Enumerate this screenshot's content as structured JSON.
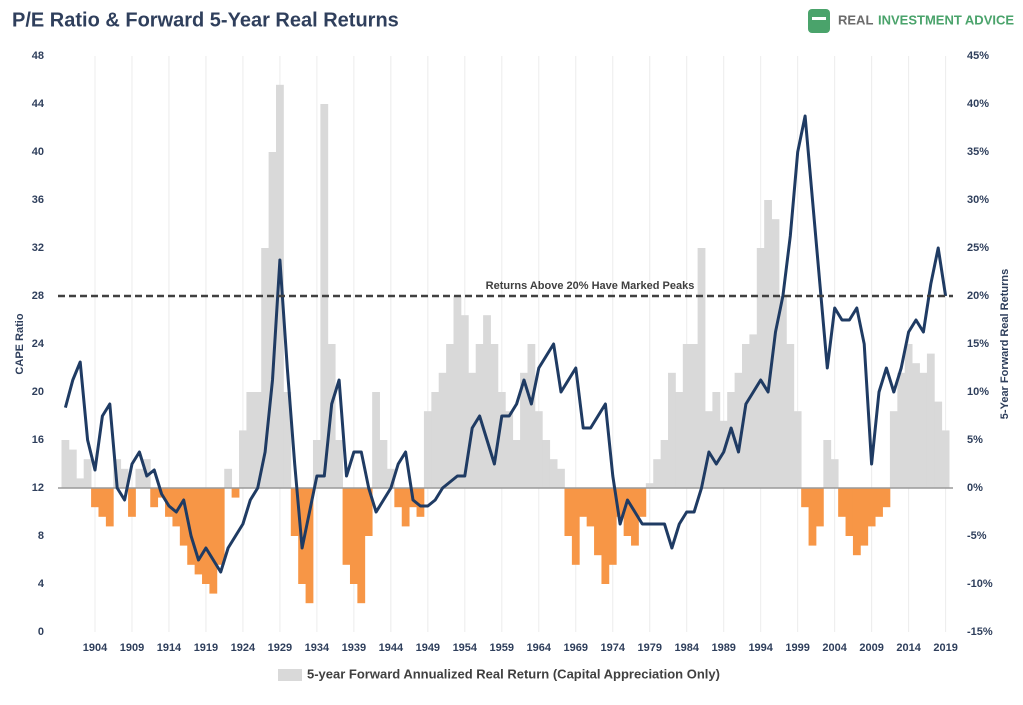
{
  "chart_data": {
    "type": "combo",
    "title": "P/E Ratio & Forward 5-Year Real Returns",
    "logo": [
      "REAL",
      "INVESTMENT ADVICE"
    ],
    "y_label": "CAPE Ratio",
    "y2_label": "5-Year Forward Real Returns",
    "x": [
      1900,
      1901,
      1902,
      1903,
      1904,
      1905,
      1906,
      1907,
      1908,
      1909,
      1910,
      1911,
      1912,
      1913,
      1914,
      1915,
      1916,
      1917,
      1918,
      1919,
      1920,
      1921,
      1922,
      1923,
      1924,
      1925,
      1926,
      1927,
      1928,
      1929,
      1930,
      1931,
      1932,
      1933,
      1934,
      1935,
      1936,
      1937,
      1938,
      1939,
      1940,
      1941,
      1942,
      1943,
      1944,
      1945,
      1946,
      1947,
      1948,
      1949,
      1950,
      1951,
      1952,
      1953,
      1954,
      1955,
      1956,
      1957,
      1958,
      1959,
      1960,
      1961,
      1962,
      1963,
      1964,
      1965,
      1966,
      1967,
      1968,
      1969,
      1970,
      1971,
      1972,
      1973,
      1974,
      1975,
      1976,
      1977,
      1978,
      1979,
      1980,
      1981,
      1982,
      1983,
      1984,
      1985,
      1986,
      1987,
      1988,
      1989,
      1990,
      1991,
      1992,
      1993,
      1994,
      1995,
      1996,
      1997,
      1998,
      1999,
      2000,
      2001,
      2002,
      2003,
      2004,
      2005,
      2006,
      2007,
      2008,
      2009,
      2010,
      2011,
      2012,
      2013,
      2014,
      2015,
      2016,
      2017,
      2018,
      2019
    ],
    "series": [
      {
        "name": "5-year Forward Annualized Real Return (Capital Appreciation Only)",
        "type": "bar",
        "axis": "y2",
        "color": "#d9d9d9",
        "negative_color": "#f79646",
        "values": [
          5,
          4,
          1,
          3,
          -2,
          -3,
          -4,
          3,
          2,
          -3,
          2,
          3,
          -2,
          -1,
          -3,
          -4,
          -6,
          -8,
          -9,
          -10,
          -11,
          -8,
          2,
          -1,
          6,
          10,
          10,
          25,
          35,
          42,
          10,
          -5,
          -10,
          -12,
          5,
          40,
          15,
          5,
          -8,
          -10,
          -12,
          -5,
          10,
          5,
          2,
          -2,
          -4,
          -2,
          -3,
          8,
          10,
          12,
          15,
          20,
          18,
          12,
          15,
          18,
          15,
          10,
          8,
          5,
          12,
          15,
          8,
          5,
          3,
          2,
          -5,
          -8,
          -3,
          -4,
          -7,
          -10,
          -8,
          -3,
          -5,
          -6,
          -3,
          0.5,
          3,
          5,
          12,
          10,
          15,
          15,
          25,
          8,
          10,
          7,
          10,
          12,
          15,
          16,
          25,
          30,
          28,
          20,
          15,
          8,
          -2,
          -6,
          -4,
          5,
          3,
          -3,
          -5,
          -7,
          -6,
          -4,
          -3,
          -2,
          8,
          12,
          15,
          13,
          12,
          14,
          9,
          6
        ]
      },
      {
        "type": "line",
        "color": "#1f3b63",
        "values": [
          18.7,
          21,
          22.5,
          16,
          13.5,
          18,
          19,
          12,
          11,
          14,
          15,
          13,
          13.5,
          11.5,
          10.5,
          10,
          11,
          8,
          6,
          7,
          6,
          5,
          7,
          8,
          9,
          11,
          12,
          15,
          21,
          31,
          22,
          14,
          7,
          10,
          13,
          13,
          19,
          21,
          13,
          15,
          15,
          12,
          10,
          11,
          12,
          14,
          15,
          11,
          10.5,
          10.5,
          11,
          12,
          12.5,
          13,
          13,
          17,
          18,
          16,
          14,
          18,
          18,
          19,
          21,
          19,
          22,
          23,
          24,
          20,
          21,
          22,
          17,
          17,
          18,
          19,
          13,
          9,
          11,
          10,
          9,
          9,
          9,
          9,
          7,
          9,
          10,
          10,
          12,
          15,
          14,
          15,
          17,
          15,
          19,
          20,
          21,
          20,
          25,
          28,
          33,
          40,
          43,
          36,
          29,
          22,
          27,
          26,
          26,
          27,
          24,
          14,
          20,
          22,
          20,
          22,
          25,
          26,
          25,
          29,
          32,
          28
        ]
      }
    ],
    "xlim": [
      1899,
      2020
    ],
    "xticks": [
      1904,
      1909,
      1914,
      1919,
      1924,
      1929,
      1934,
      1939,
      1944,
      1949,
      1954,
      1959,
      1964,
      1969,
      1974,
      1979,
      1984,
      1989,
      1994,
      1999,
      2004,
      2009,
      2014,
      2019
    ],
    "ylim": [
      0,
      48
    ],
    "yticks": [
      0,
      4,
      8,
      12,
      16,
      20,
      24,
      28,
      32,
      36,
      40,
      44,
      48
    ],
    "y2lim": [
      -15,
      45
    ],
    "y2ticks": [
      {
        "value": -15,
        "label": "-15%"
      },
      {
        "value": -10,
        "label": "-10%"
      },
      {
        "value": -5,
        "label": "-5%"
      },
      {
        "value": 0,
        "label": "0%"
      },
      {
        "value": 5,
        "label": "5%"
      },
      {
        "value": 10,
        "label": "10%"
      },
      {
        "value": 15,
        "label": "15%"
      },
      {
        "value": 20,
        "label": "20%"
      },
      {
        "value": 25,
        "label": "25%"
      },
      {
        "value": 30,
        "label": "30%"
      },
      {
        "value": 35,
        "label": "35%"
      },
      {
        "value": 40,
        "label": "40%"
      },
      {
        "value": 45,
        "label": "45%"
      }
    ],
    "reference_line": {
      "value": 20,
      "axis": "y2",
      "label": "Returns Above 20% Have Marked Peaks"
    },
    "grid": "x"
  }
}
